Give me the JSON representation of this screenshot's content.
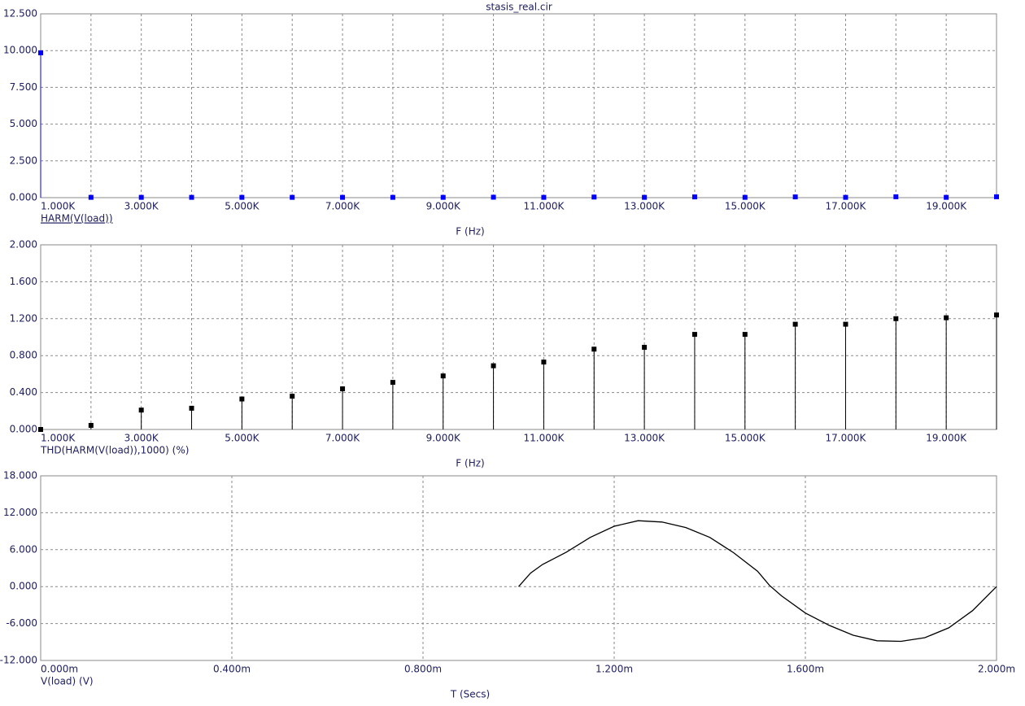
{
  "chart_data": [
    {
      "type": "stem",
      "title": "stasis_real.cir",
      "xlabel": "F (Hz)",
      "x": [
        1000,
        2000,
        3000,
        4000,
        5000,
        6000,
        7000,
        8000,
        9000,
        10000,
        11000,
        12000,
        13000,
        14000,
        15000,
        16000,
        17000,
        18000,
        19000,
        20000
      ],
      "series": [
        {
          "name": "HARM(V(load))",
          "color": "#0000ff",
          "underline": true,
          "values": [
            9.85,
            0.02,
            0.02,
            0.02,
            0.02,
            0.02,
            0.02,
            0.02,
            0.02,
            0.03,
            0.02,
            0.04,
            0.02,
            0.05,
            0.02,
            0.05,
            0.02,
            0.06,
            0.02,
            0.06
          ]
        }
      ],
      "xlim": [
        1000,
        20000
      ],
      "xticks": [
        {
          "value": 1000,
          "label": "1.000K"
        },
        {
          "value": 3000,
          "label": "3.000K"
        },
        {
          "value": 5000,
          "label": "5.000K"
        },
        {
          "value": 7000,
          "label": "7.000K"
        },
        {
          "value": 9000,
          "label": "9.000K"
        },
        {
          "value": 11000,
          "label": "11.000K"
        },
        {
          "value": 13000,
          "label": "13.000K"
        },
        {
          "value": 15000,
          "label": "15.000K"
        },
        {
          "value": 17000,
          "label": "17.000K"
        },
        {
          "value": 19000,
          "label": "19.000K"
        }
      ],
      "xminor": [
        2000,
        4000,
        6000,
        8000,
        10000,
        12000,
        14000,
        16000,
        18000
      ],
      "ylim": [
        0,
        12.5
      ],
      "yticks": [
        {
          "value": 0,
          "label": "0.000"
        },
        {
          "value": 2.5,
          "label": "2.500"
        },
        {
          "value": 5,
          "label": "5.000"
        },
        {
          "value": 7.5,
          "label": "7.500"
        },
        {
          "value": 10,
          "label": "10.000"
        },
        {
          "value": 12.5,
          "label": "12.500"
        }
      ],
      "grid": true
    },
    {
      "type": "stem",
      "xlabel": "F (Hz)",
      "x": [
        1000,
        2000,
        3000,
        4000,
        5000,
        6000,
        7000,
        8000,
        9000,
        10000,
        11000,
        12000,
        13000,
        14000,
        15000,
        16000,
        17000,
        18000,
        19000,
        20000
      ],
      "series": [
        {
          "name": "THD(HARM(V(load)),1000) (%)",
          "color": "#000000",
          "values": [
            0,
            0.044,
            0.21,
            0.23,
            0.33,
            0.36,
            0.44,
            0.51,
            0.58,
            0.69,
            0.73,
            0.87,
            0.89,
            1.03,
            1.03,
            1.14,
            1.14,
            1.2,
            1.21,
            1.24
          ]
        }
      ],
      "xlim": [
        1000,
        20000
      ],
      "xticks": [
        {
          "value": 1000,
          "label": "1.000K"
        },
        {
          "value": 3000,
          "label": "3.000K"
        },
        {
          "value": 5000,
          "label": "5.000K"
        },
        {
          "value": 7000,
          "label": "7.000K"
        },
        {
          "value": 9000,
          "label": "9.000K"
        },
        {
          "value": 11000,
          "label": "11.000K"
        },
        {
          "value": 13000,
          "label": "13.000K"
        },
        {
          "value": 15000,
          "label": "15.000K"
        },
        {
          "value": 17000,
          "label": "17.000K"
        },
        {
          "value": 19000,
          "label": "19.000K"
        }
      ],
      "xminor": [
        2000,
        4000,
        6000,
        8000,
        10000,
        12000,
        14000,
        16000,
        18000
      ],
      "ylim": [
        0,
        2
      ],
      "yticks": [
        {
          "value": 0,
          "label": "0.000"
        },
        {
          "value": 0.4,
          "label": "0.400"
        },
        {
          "value": 0.8,
          "label": "0.800"
        },
        {
          "value": 1.2,
          "label": "1.200"
        },
        {
          "value": 1.6,
          "label": "1.600"
        },
        {
          "value": 2,
          "label": "2.000"
        }
      ],
      "grid": true
    },
    {
      "type": "line",
      "xlabel": "T (Secs)",
      "x": [
        0.001,
        0.001025,
        0.00105,
        0.0011,
        0.00115,
        0.0012,
        0.00125,
        0.0013,
        0.00135,
        0.0014,
        0.00145,
        0.0015,
        0.001525,
        0.00155,
        0.0016,
        0.00165,
        0.0017,
        0.00175,
        0.0018,
        0.00185,
        0.0019,
        0.00195,
        0.002
      ],
      "series": [
        {
          "name": "V(load) (V)",
          "color": "#000000",
          "values": [
            0,
            2.2,
            3.6,
            5.6,
            8.0,
            9.8,
            10.7,
            10.5,
            9.6,
            8.0,
            5.5,
            2.5,
            0.2,
            -1.5,
            -4.3,
            -6.3,
            -7.9,
            -8.8,
            -8.9,
            -8.3,
            -6.7,
            -3.9,
            0
          ]
        }
      ],
      "xlim": [
        0,
        0.002
      ],
      "xticks": [
        {
          "value": 0,
          "label": "0.000m"
        },
        {
          "value": 0.0004,
          "label": "0.400m"
        },
        {
          "value": 0.0008,
          "label": "0.800m"
        },
        {
          "value": 0.0012,
          "label": "1.200m"
        },
        {
          "value": 0.0016,
          "label": "1.600m"
        },
        {
          "value": 0.002,
          "label": "2.000m"
        }
      ],
      "ylim": [
        -12,
        18
      ],
      "yticks": [
        {
          "value": -12,
          "label": "-12.000"
        },
        {
          "value": -6,
          "label": "-6.000"
        },
        {
          "value": 0,
          "label": "0.000"
        },
        {
          "value": 6,
          "label": "6.000"
        },
        {
          "value": 12,
          "label": "12.000"
        },
        {
          "value": 18,
          "label": "18.000"
        }
      ],
      "grid": true
    }
  ]
}
